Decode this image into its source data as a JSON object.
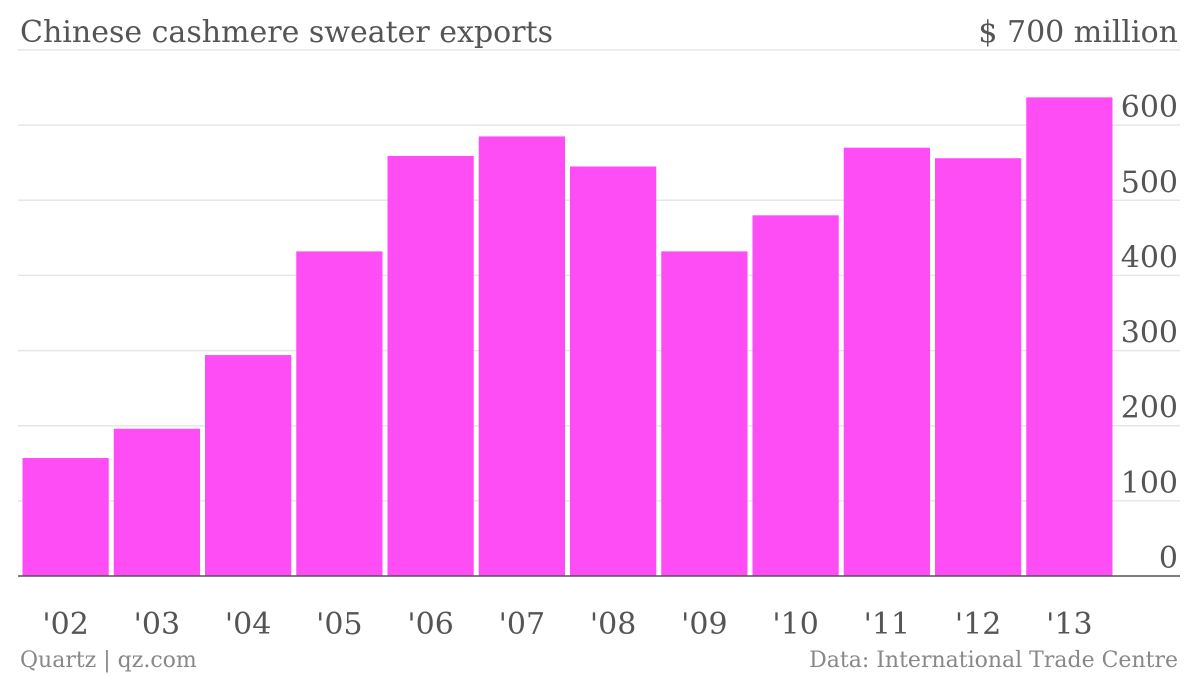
{
  "chart_data": {
    "type": "bar",
    "title": "Chinese cashmere sweater exports",
    "categories": [
      "'02",
      "'03",
      "'04",
      "'05",
      "'06",
      "'07",
      "'08",
      "'09",
      "'10",
      "'11",
      "'12",
      "'13"
    ],
    "values": [
      157,
      196,
      294,
      432,
      559,
      585,
      545,
      432,
      480,
      570,
      556,
      637
    ],
    "ylim": [
      0,
      700
    ],
    "yticks": [
      0,
      100,
      200,
      300,
      400,
      500,
      600
    ],
    "ytick_labels": [
      "0",
      "100",
      "200",
      "300",
      "400",
      "500",
      "600"
    ],
    "top_tick_label": "$ 700 million",
    "xlabel": "",
    "ylabel": "",
    "grid": true,
    "y_axis_side": "right",
    "bar_color": "#ff4df6"
  },
  "footer": {
    "source_left": "Quartz | qz.com",
    "source_right": "Data: International Trade Centre"
  }
}
